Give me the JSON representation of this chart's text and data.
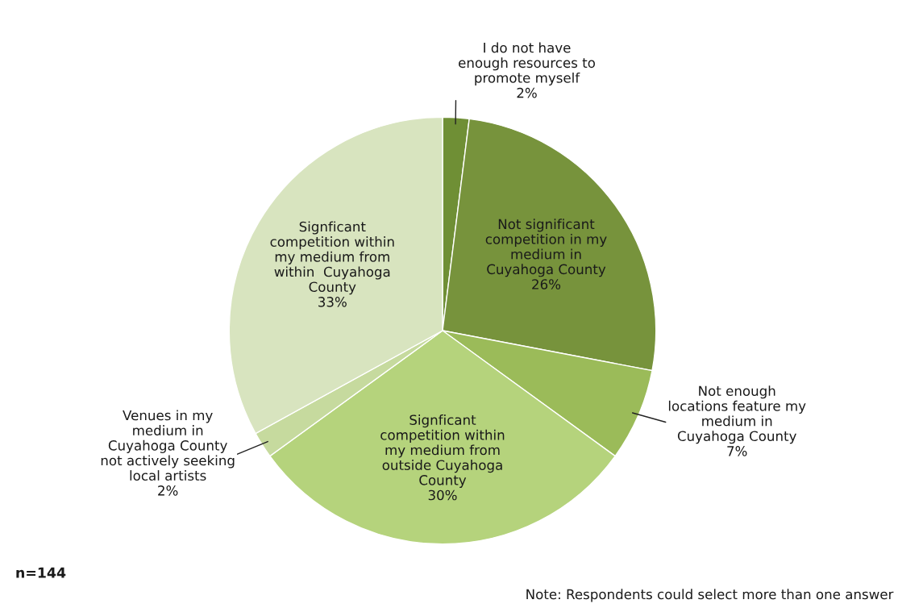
{
  "chart_data": {
    "type": "pie",
    "categories": [
      "I do not have\nenough resources to\npromote myself",
      "Not significant\ncompetition in my\nmedium in\nCuyahoga County",
      "Not enough\nlocations feature my\nmedium in\nCuyahoga County",
      "Signficant\ncompetition within\nmy medium from\noutside Cuyahoga\nCounty",
      "Venues in my\nmedium in\nCuyahoga County\nnot actively seeking\nlocal artists",
      "Signficant\ncompetition within\nmy medium from\nwithin  Cuyahoga\nCounty"
    ],
    "values": [
      2,
      26,
      7,
      30,
      2,
      33
    ],
    "colors": [
      "#6f8f35",
      "#77933c",
      "#9bbb59",
      "#b5d37c",
      "#c6da9e",
      "#d8e4bf"
    ],
    "value_labels": [
      "2%",
      "26%",
      "7%",
      "30%",
      "2%",
      "33%"
    ],
    "annotations": [
      "n=144",
      "Note: Respondents could select more than one answer"
    ]
  }
}
